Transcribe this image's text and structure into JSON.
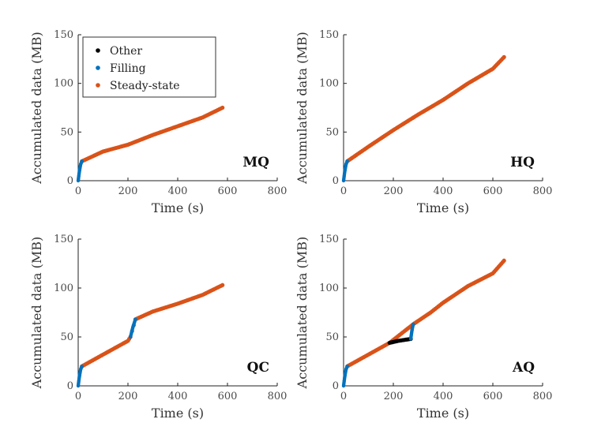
{
  "legend": {
    "entries": [
      {
        "label": "Other",
        "color": "#000000"
      },
      {
        "label": "Filling",
        "color": "#0072BD"
      },
      {
        "label": "Steady-state",
        "color": "#D95319"
      }
    ]
  },
  "chart_data": [
    {
      "type": "scatter",
      "panel_label": "MQ",
      "xlabel": "Time (s)",
      "ylabel": "Accumulated data (MB)",
      "xlim": [
        0,
        800
      ],
      "ylim": [
        0,
        150
      ],
      "xticks": [
        0,
        200,
        400,
        600,
        800
      ],
      "yticks": [
        0,
        50,
        100,
        150
      ],
      "grid": false,
      "series": [
        {
          "name": "Filling",
          "x": [
            0,
            5,
            10,
            15
          ],
          "y": [
            0,
            10,
            17,
            20
          ]
        },
        {
          "name": "Steady-state",
          "x": [
            15,
            100,
            200,
            300,
            400,
            500,
            580
          ],
          "y": [
            20,
            30,
            37,
            47,
            56,
            65,
            75
          ]
        }
      ]
    },
    {
      "type": "scatter",
      "panel_label": "HQ",
      "xlabel": "Time (s)",
      "ylabel": "Accumulated data (MB)",
      "xlim": [
        0,
        800
      ],
      "ylim": [
        0,
        150
      ],
      "xticks": [
        0,
        200,
        400,
        600,
        800
      ],
      "yticks": [
        0,
        50,
        100,
        150
      ],
      "grid": false,
      "series": [
        {
          "name": "Filling",
          "x": [
            0,
            5,
            10,
            15
          ],
          "y": [
            0,
            10,
            17,
            20
          ]
        },
        {
          "name": "Steady-state",
          "x": [
            15,
            100,
            200,
            300,
            400,
            500,
            600,
            645
          ],
          "y": [
            20,
            35,
            52,
            68,
            83,
            100,
            115,
            127
          ]
        }
      ]
    },
    {
      "type": "scatter",
      "panel_label": "QC",
      "xlabel": "Time (s)",
      "ylabel": "Accumulated data (MB)",
      "xlim": [
        0,
        800
      ],
      "ylim": [
        0,
        150
      ],
      "xticks": [
        0,
        200,
        400,
        600,
        800
      ],
      "yticks": [
        0,
        50,
        100,
        150
      ],
      "grid": false,
      "series": [
        {
          "name": "Filling",
          "x": [
            0,
            5,
            10,
            15,
            210,
            220,
            230
          ],
          "y": [
            0,
            10,
            17,
            20,
            50,
            60,
            68
          ]
        },
        {
          "name": "Steady-state",
          "x": [
            15,
            100,
            200,
            210,
            230,
            300,
            400,
            500,
            580
          ],
          "y": [
            20,
            32,
            46,
            50,
            68,
            76,
            84,
            93,
            103
          ]
        }
      ]
    },
    {
      "type": "scatter",
      "panel_label": "AQ",
      "xlabel": "Time (s)",
      "ylabel": "Accumulated data (MB)",
      "xlim": [
        0,
        800
      ],
      "ylim": [
        0,
        150
      ],
      "xticks": [
        0,
        200,
        400,
        600,
        800
      ],
      "yticks": [
        0,
        50,
        100,
        150
      ],
      "grid": false,
      "series": [
        {
          "name": "Filling",
          "x": [
            0,
            5,
            10,
            15,
            270,
            275,
            280
          ],
          "y": [
            0,
            10,
            17,
            20,
            48,
            57,
            63
          ]
        },
        {
          "name": "Steady-state",
          "x": [
            15,
            100,
            185,
            280,
            350,
            400,
            500,
            600,
            645
          ],
          "y": [
            20,
            32,
            44,
            63,
            75,
            85,
            102,
            115,
            128
          ]
        },
        {
          "name": "Other",
          "x": [
            185,
            220,
            270
          ],
          "y": [
            44,
            46,
            48
          ]
        }
      ]
    }
  ]
}
